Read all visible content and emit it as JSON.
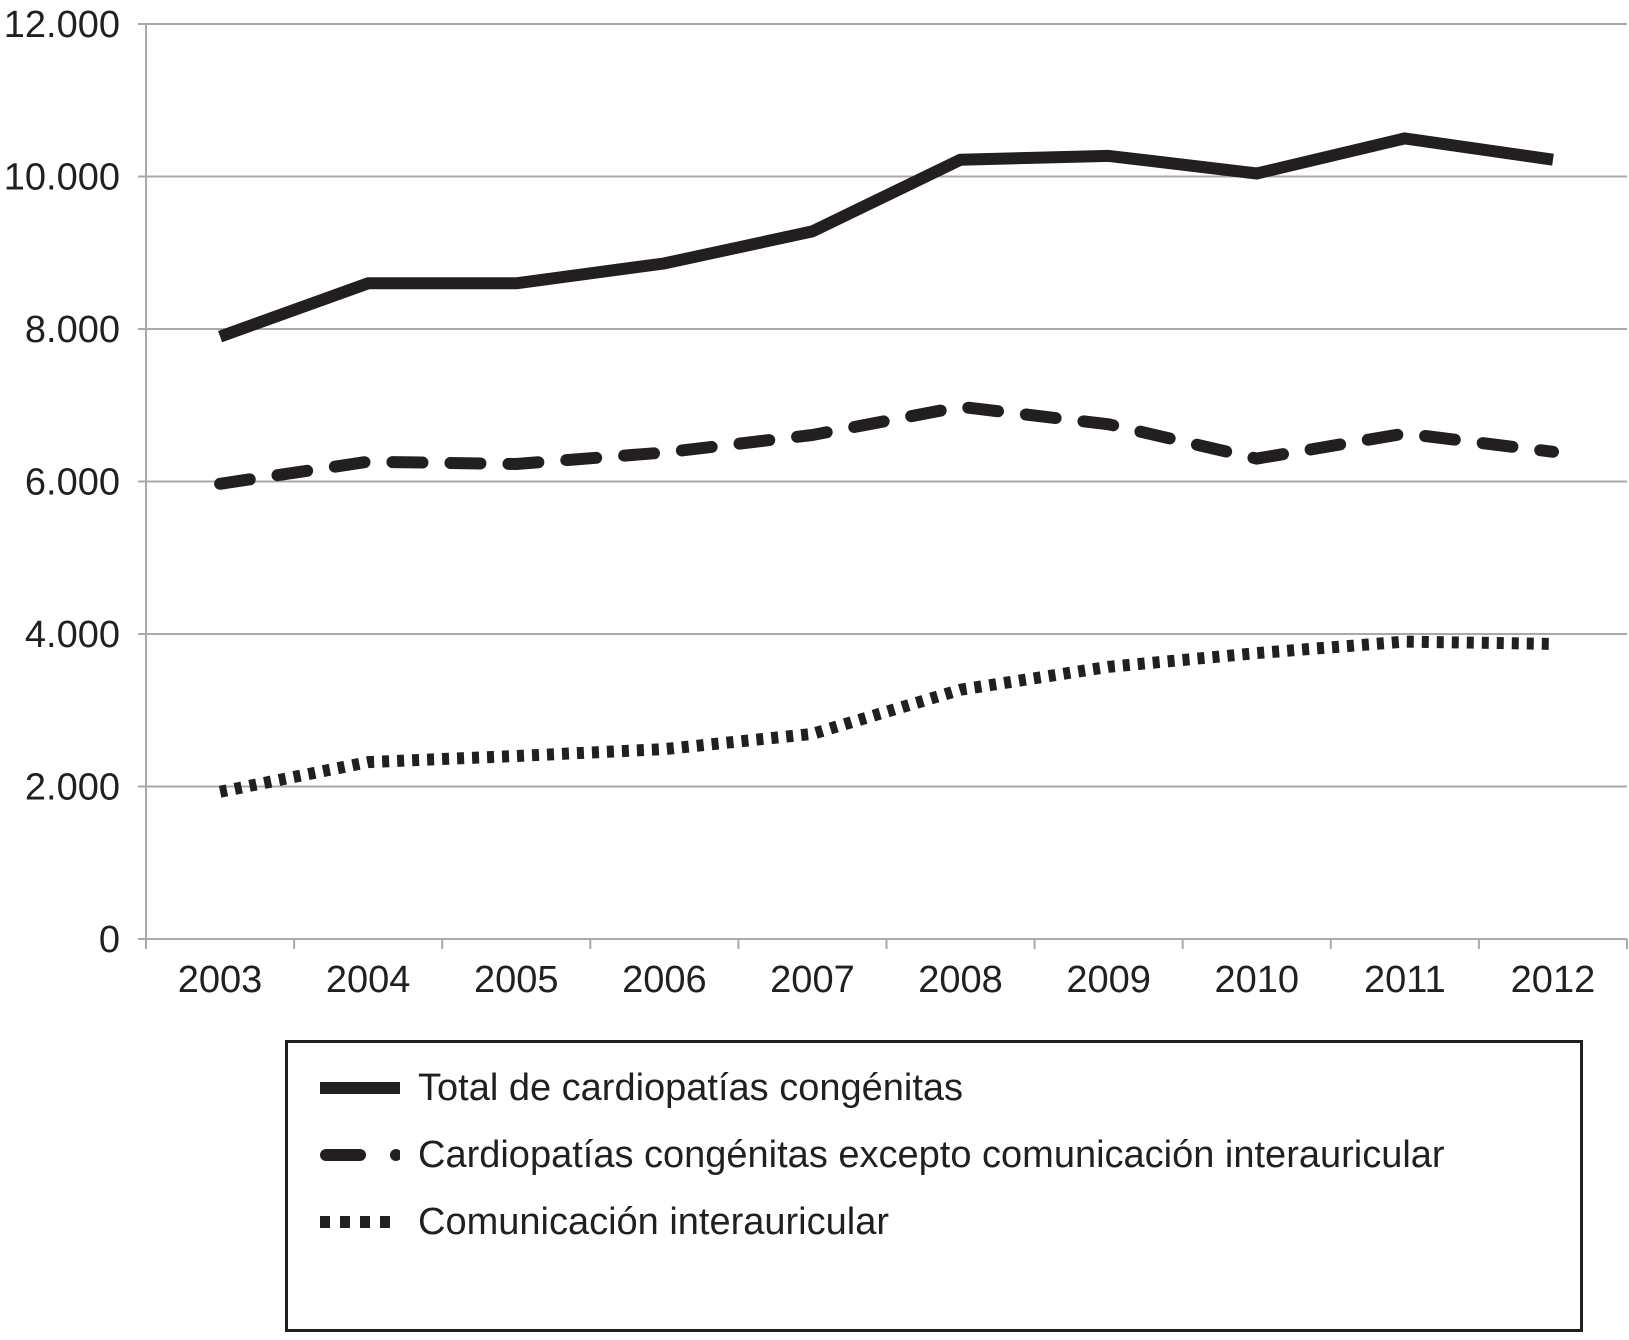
{
  "chart_data": {
    "type": "line",
    "title": "",
    "xlabel": "",
    "ylabel": "",
    "ylim": [
      0,
      12000
    ],
    "y_ticks": [
      {
        "value": 0,
        "label": "0"
      },
      {
        "value": 2000,
        "label": "2.000"
      },
      {
        "value": 4000,
        "label": "4.000"
      },
      {
        "value": 6000,
        "label": "6.000"
      },
      {
        "value": 8000,
        "label": "8.000"
      },
      {
        "value": 10000,
        "label": "10.000"
      },
      {
        "value": 12000,
        "label": "12.000"
      }
    ],
    "grid": "horizontal",
    "legend_position": "bottom",
    "categories": [
      "2003",
      "2004",
      "2005",
      "2006",
      "2007",
      "2008",
      "2009",
      "2010",
      "2011",
      "2012"
    ],
    "series": [
      {
        "name": "Total de cardiopatías congénitas",
        "style": "solid",
        "color": "#231f20",
        "values": [
          7900,
          8600,
          8600,
          8860,
          9280,
          10220,
          10270,
          10040,
          10500,
          10220
        ]
      },
      {
        "name": "Cardiopatías congénitas excepto comunicación interauricular",
        "style": "dashed",
        "color": "#231f20",
        "values": [
          5970,
          6260,
          6230,
          6380,
          6610,
          6980,
          6750,
          6300,
          6630,
          6390
        ]
      },
      {
        "name": "Comunicación interauricular",
        "style": "dotted",
        "color": "#231f20",
        "values": [
          1930,
          2320,
          2400,
          2490,
          2690,
          3270,
          3570,
          3750,
          3900,
          3870
        ]
      }
    ]
  },
  "colors": {
    "line": "#231f20",
    "grid": "#a7a9ac",
    "axis": "#a7a9ac"
  }
}
